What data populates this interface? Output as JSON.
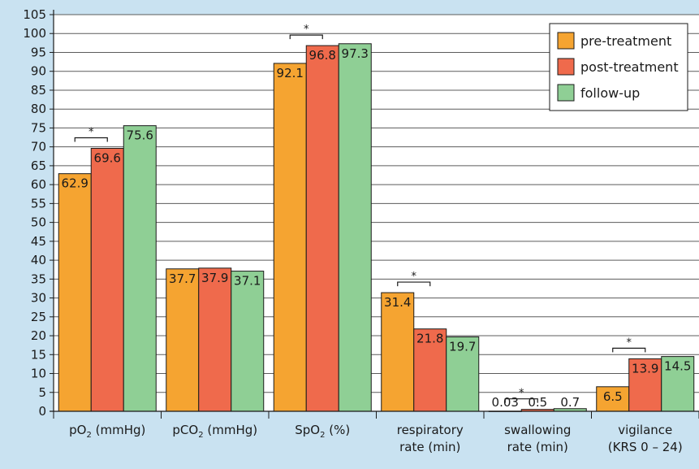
{
  "chart_data": {
    "type": "bar",
    "categories": [
      {
        "text": "pO",
        "sub": "2",
        "text2": " (mmHg)",
        "line2": ""
      },
      {
        "text": "pCO",
        "sub": "2",
        "text2": " (mmHg)",
        "line2": ""
      },
      {
        "text": "SpO",
        "sub": "2",
        "text2": " (%)",
        "line2": ""
      },
      {
        "text": "respiratory",
        "sub": "",
        "text2": "",
        "line2": "rate (min)"
      },
      {
        "text": "swallowing",
        "sub": "",
        "text2": "",
        "line2": "rate (min)"
      },
      {
        "text": "vigilance",
        "sub": "",
        "text2": "",
        "line2": "(KRS 0 – 24)"
      }
    ],
    "series": [
      {
        "name": "pre-treatment",
        "color": "#f5a431",
        "values": [
          62.9,
          37.7,
          92.1,
          31.4,
          0.03,
          6.5
        ],
        "labels": [
          "62.9",
          "37.7",
          "92.1",
          "31.4",
          "0.03",
          "6.5"
        ]
      },
      {
        "name": "post-treatment",
        "color": "#ef6a4c",
        "values": [
          69.6,
          37.9,
          96.8,
          21.8,
          0.5,
          13.9
        ],
        "labels": [
          "69.6",
          "37.9",
          "96.8",
          "21.8",
          "0.5",
          "13.9"
        ]
      },
      {
        "name": "follow-up",
        "color": "#8fcf95",
        "values": [
          75.6,
          37.1,
          97.3,
          19.7,
          0.7,
          14.5
        ],
        "labels": [
          "75.6",
          "37.1",
          "97.3",
          "19.7",
          "0.7",
          "14.5"
        ]
      }
    ],
    "ylim": [
      0,
      105
    ],
    "yticks": [
      0,
      5,
      10,
      15,
      20,
      25,
      30,
      35,
      40,
      45,
      50,
      55,
      60,
      65,
      70,
      75,
      80,
      85,
      90,
      95,
      100,
      105
    ],
    "grid": true,
    "legend_position": "top-right",
    "significance": [
      {
        "category_index": 0,
        "series": [
          0,
          1
        ],
        "marker": "*"
      },
      {
        "category_index": 2,
        "series": [
          0,
          1
        ],
        "marker": "*"
      },
      {
        "category_index": 3,
        "series": [
          0,
          1
        ],
        "marker": "*"
      },
      {
        "category_index": 4,
        "series": [
          0,
          1
        ],
        "marker": "*"
      },
      {
        "category_index": 5,
        "series": [
          0,
          1
        ],
        "marker": "*"
      }
    ]
  }
}
